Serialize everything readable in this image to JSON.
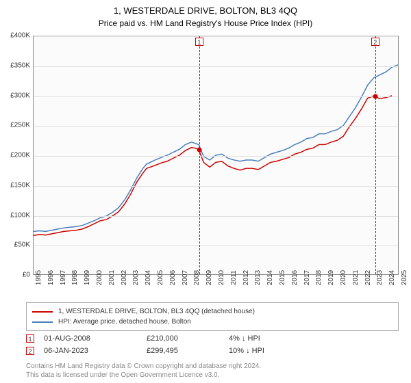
{
  "title": "1, WESTERDALE DRIVE, BOLTON, BL3 4QQ",
  "subtitle": "Price paid vs. HM Land Registry's House Price Index (HPI)",
  "chart": {
    "type": "line",
    "background_color": "#fbfbfb",
    "grid_color": "#e0e0e0",
    "axis_color": "#888888",
    "ylim": [
      0,
      400000
    ],
    "ytick_step": 50000,
    "yticks": [
      "£0",
      "£50K",
      "£100K",
      "£150K",
      "£200K",
      "£250K",
      "£300K",
      "£350K",
      "£400K"
    ],
    "xlim": [
      1995,
      2025
    ],
    "xticks": [
      1995,
      1996,
      1997,
      1998,
      1999,
      2000,
      2001,
      2002,
      2003,
      2004,
      2005,
      2006,
      2007,
      2008,
      2009,
      2010,
      2011,
      2012,
      2013,
      2014,
      2015,
      2016,
      2017,
      2018,
      2019,
      2020,
      2021,
      2022,
      2023,
      2024,
      2025
    ],
    "series": [
      {
        "name": "property",
        "label": "1, WESTERDALE DRIVE, BOLTON, BL3 4QQ (detached house)",
        "color": "#cc0000",
        "line_width": 1.5,
        "data": [
          [
            1995.0,
            65000
          ],
          [
            1995.5,
            67000
          ],
          [
            1996.0,
            66000
          ],
          [
            1996.5,
            68000
          ],
          [
            1997.0,
            70000
          ],
          [
            1997.5,
            72000
          ],
          [
            1998.0,
            73000
          ],
          [
            1998.5,
            74000
          ],
          [
            1999.0,
            76000
          ],
          [
            1999.5,
            80000
          ],
          [
            2000.0,
            85000
          ],
          [
            2000.5,
            90000
          ],
          [
            2001.0,
            92000
          ],
          [
            2001.5,
            98000
          ],
          [
            2002.0,
            105000
          ],
          [
            2002.5,
            118000
          ],
          [
            2003.0,
            135000
          ],
          [
            2003.5,
            155000
          ],
          [
            2004.0,
            170000
          ],
          [
            2004.3,
            178000
          ],
          [
            2004.6,
            180000
          ],
          [
            2005.0,
            183000
          ],
          [
            2005.5,
            187000
          ],
          [
            2006.0,
            190000
          ],
          [
            2006.5,
            195000
          ],
          [
            2007.0,
            200000
          ],
          [
            2007.5,
            208000
          ],
          [
            2008.0,
            213000
          ],
          [
            2008.3,
            212000
          ],
          [
            2008.59,
            210000
          ],
          [
            2009.0,
            188000
          ],
          [
            2009.5,
            180000
          ],
          [
            2010.0,
            188000
          ],
          [
            2010.5,
            190000
          ],
          [
            2011.0,
            182000
          ],
          [
            2011.5,
            178000
          ],
          [
            2012.0,
            175000
          ],
          [
            2012.5,
            178000
          ],
          [
            2013.0,
            178000
          ],
          [
            2013.5,
            176000
          ],
          [
            2014.0,
            182000
          ],
          [
            2014.5,
            188000
          ],
          [
            2015.0,
            190000
          ],
          [
            2015.5,
            193000
          ],
          [
            2016.0,
            196000
          ],
          [
            2016.5,
            202000
          ],
          [
            2017.0,
            205000
          ],
          [
            2017.5,
            210000
          ],
          [
            2018.0,
            212000
          ],
          [
            2018.5,
            218000
          ],
          [
            2019.0,
            218000
          ],
          [
            2019.5,
            222000
          ],
          [
            2020.0,
            225000
          ],
          [
            2020.5,
            232000
          ],
          [
            2021.0,
            248000
          ],
          [
            2021.5,
            262000
          ],
          [
            2022.0,
            278000
          ],
          [
            2022.5,
            296000
          ],
          [
            2023.0,
            299495
          ],
          [
            2023.02,
            299495
          ],
          [
            2023.5,
            295000
          ],
          [
            2024.0,
            297000
          ],
          [
            2024.5,
            300000
          ]
        ]
      },
      {
        "name": "hpi",
        "label": "HPI: Average price, detached house, Bolton",
        "color": "#4a7ebb",
        "line_width": 1.5,
        "data": [
          [
            1995.0,
            72000
          ],
          [
            1995.5,
            73000
          ],
          [
            1996.0,
            72000
          ],
          [
            1996.5,
            74000
          ],
          [
            1997.0,
            76000
          ],
          [
            1997.5,
            78000
          ],
          [
            1998.0,
            79000
          ],
          [
            1998.5,
            80000
          ],
          [
            1999.0,
            82000
          ],
          [
            1999.5,
            86000
          ],
          [
            2000.0,
            90000
          ],
          [
            2000.5,
            95000
          ],
          [
            2001.0,
            98000
          ],
          [
            2001.5,
            104000
          ],
          [
            2002.0,
            112000
          ],
          [
            2002.5,
            125000
          ],
          [
            2003.0,
            142000
          ],
          [
            2003.5,
            162000
          ],
          [
            2004.0,
            178000
          ],
          [
            2004.3,
            185000
          ],
          [
            2004.6,
            188000
          ],
          [
            2005.0,
            192000
          ],
          [
            2005.5,
            196000
          ],
          [
            2006.0,
            200000
          ],
          [
            2006.5,
            205000
          ],
          [
            2007.0,
            210000
          ],
          [
            2007.5,
            218000
          ],
          [
            2008.0,
            222000
          ],
          [
            2008.3,
            220000
          ],
          [
            2008.59,
            218000
          ],
          [
            2009.0,
            198000
          ],
          [
            2009.5,
            192000
          ],
          [
            2010.0,
            200000
          ],
          [
            2010.5,
            202000
          ],
          [
            2011.0,
            195000
          ],
          [
            2011.5,
            192000
          ],
          [
            2012.0,
            190000
          ],
          [
            2012.5,
            192000
          ],
          [
            2013.0,
            192000
          ],
          [
            2013.5,
            190000
          ],
          [
            2014.0,
            196000
          ],
          [
            2014.5,
            202000
          ],
          [
            2015.0,
            205000
          ],
          [
            2015.5,
            208000
          ],
          [
            2016.0,
            212000
          ],
          [
            2016.5,
            218000
          ],
          [
            2017.0,
            222000
          ],
          [
            2017.5,
            228000
          ],
          [
            2018.0,
            230000
          ],
          [
            2018.5,
            236000
          ],
          [
            2019.0,
            236000
          ],
          [
            2019.5,
            240000
          ],
          [
            2020.0,
            243000
          ],
          [
            2020.5,
            250000
          ],
          [
            2021.0,
            265000
          ],
          [
            2021.5,
            280000
          ],
          [
            2022.0,
            298000
          ],
          [
            2022.5,
            318000
          ],
          [
            2023.0,
            330000
          ],
          [
            2023.5,
            335000
          ],
          [
            2024.0,
            340000
          ],
          [
            2024.5,
            348000
          ],
          [
            2025.0,
            352000
          ]
        ]
      }
    ],
    "markers": [
      {
        "id": "1",
        "x": 2008.59,
        "y": 210000,
        "color": "#cc0000"
      },
      {
        "id": "2",
        "x": 2023.02,
        "y": 299495,
        "color": "#cc0000"
      }
    ]
  },
  "legend": {
    "items": [
      {
        "color": "#cc0000",
        "label": "1, WESTERDALE DRIVE, BOLTON, BL3 4QQ (detached house)"
      },
      {
        "color": "#4a7ebb",
        "label": "HPI: Average price, detached house, Bolton"
      }
    ]
  },
  "notes": [
    {
      "id": "1",
      "color": "#cc0000",
      "date": "01-AUG-2008",
      "price": "£210,000",
      "delta": "4% ↓ HPI"
    },
    {
      "id": "2",
      "color": "#cc0000",
      "date": "06-JAN-2023",
      "price": "£299,495",
      "delta": "10% ↓ HPI"
    }
  ],
  "footer_line1": "Contains HM Land Registry data © Crown copyright and database right 2024.",
  "footer_line2": "This data is licensed under the Open Government Licence v3.0."
}
